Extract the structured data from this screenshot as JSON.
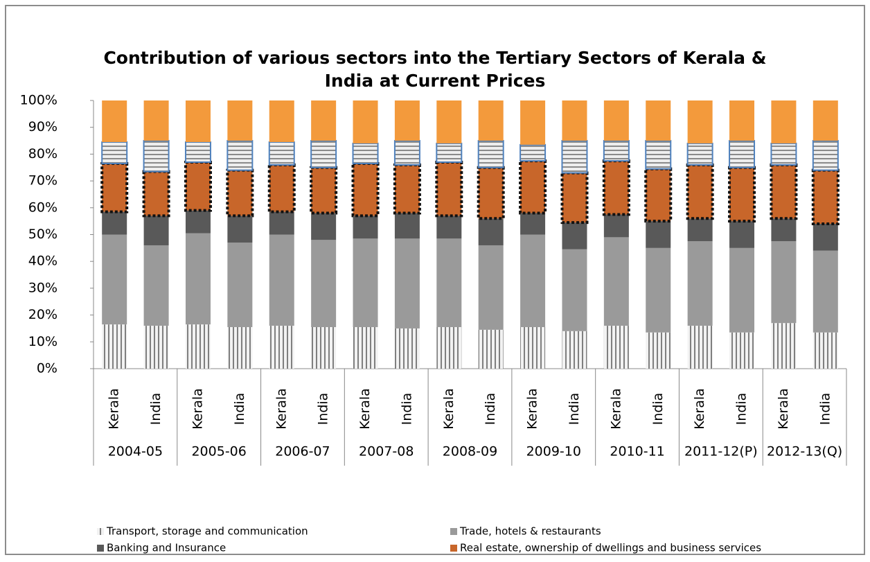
{
  "chart_data": {
    "type": "stacked_bar_100",
    "title": "Contribution of various sectors into the Tertiary Sectors of Kerala & India at Current Prices",
    "categories": [
      "Kerala",
      "India",
      "Kerala",
      "India",
      "Kerala",
      "India",
      "Kerala",
      "India",
      "Kerala",
      "India",
      "Kerala",
      "India",
      "Kerala",
      "India",
      "Kerala",
      "India",
      "Kerala",
      "India"
    ],
    "groups": [
      "2004-05",
      "2005-06",
      "2006-07",
      "2007-08",
      "2008-09",
      "2009-10",
      "2010-11",
      "2011-12(P)",
      "2012-13(Q)"
    ],
    "series": [
      {
        "name": "Transport, storage and communication",
        "color": "#d9d9d9",
        "values": [
          16.5,
          16,
          16.5,
          15.5,
          16,
          15.5,
          15.5,
          15,
          15.5,
          14.5,
          15.5,
          14,
          16,
          13.5,
          16,
          13.5,
          17,
          13.5
        ]
      },
      {
        "name": "Trade, hotels & restaurants",
        "color": "#9a9a9a",
        "values": [
          33.5,
          30,
          34,
          31.5,
          34,
          32.5,
          33,
          33.5,
          33,
          31.5,
          34.5,
          30.5,
          33,
          31.5,
          31.5,
          31.5,
          30.5,
          30.5
        ]
      },
      {
        "name": "Banking and Insurance",
        "color": "#595959",
        "values": [
          8.5,
          11,
          8.5,
          10,
          8.5,
          10,
          8.5,
          9.5,
          8.5,
          10,
          8,
          10,
          8.5,
          10,
          8.5,
          10,
          8.5,
          10
        ]
      },
      {
        "name": "Real estate, ownership of dwellings and business services",
        "color": "#c8662a",
        "values": [
          18,
          16.5,
          18,
          17,
          17.5,
          17,
          19.5,
          18,
          20,
          19,
          19.5,
          18.5,
          20,
          19.5,
          20,
          20,
          20,
          20
        ]
      },
      {
        "color": "#c9c9c9",
        "values": [
          8,
          11.5,
          7.5,
          11,
          8.5,
          10,
          7.5,
          9,
          7,
          10,
          6,
          12,
          7.5,
          10.5,
          8,
          10,
          8,
          11
        ]
      },
      {
        "color": "#f39a3c",
        "values": [
          15.5,
          15,
          15.5,
          15,
          15.5,
          15,
          16,
          15,
          16,
          15,
          16.5,
          15,
          15,
          15,
          16,
          15,
          16,
          15
        ]
      }
    ],
    "ylim": [
      0,
      100
    ],
    "yticks": [
      {
        "value": 0,
        "label": "0%"
      },
      {
        "value": 10,
        "label": "10%"
      },
      {
        "value": 20,
        "label": "20%"
      },
      {
        "value": 30,
        "label": "30%"
      },
      {
        "value": 40,
        "label": "40%"
      },
      {
        "value": 50,
        "label": "50%"
      },
      {
        "value": 60,
        "label": "60%"
      },
      {
        "value": 70,
        "label": "70%"
      },
      {
        "value": 80,
        "label": "80%"
      },
      {
        "value": 90,
        "label": "90%"
      },
      {
        "value": 100,
        "label": "100%"
      }
    ],
    "legend": "bottom"
  }
}
